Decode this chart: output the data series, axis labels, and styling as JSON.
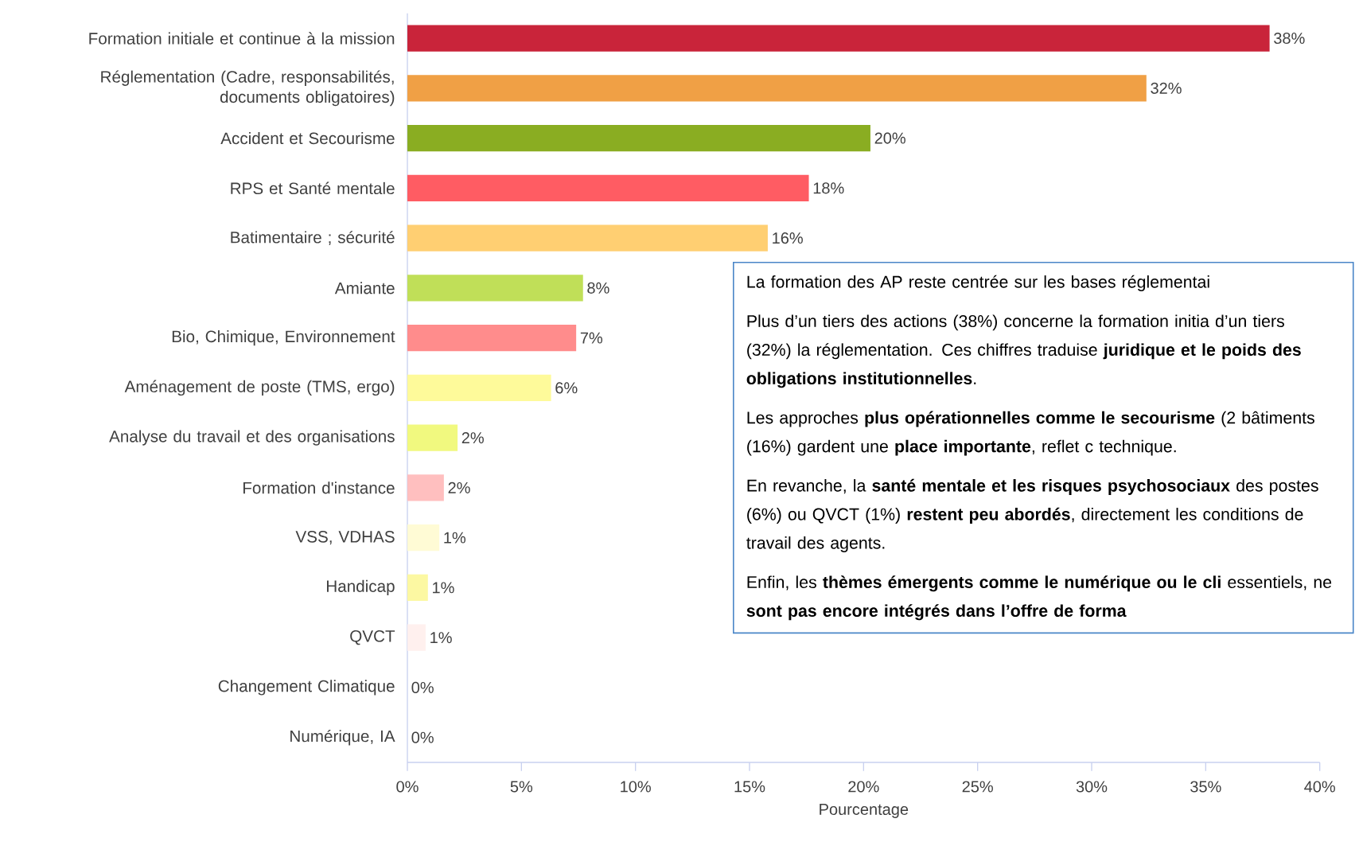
{
  "chart_data": {
    "type": "bar",
    "orientation": "horizontal",
    "categories": [
      "Formation initiale et continue à la mission",
      "Réglementation (Cadre, responsabilités, documents obligatoires)",
      "Accident et Secourisme",
      "RPS et Santé mentale",
      "Batimentaire ; sécurité",
      "Amiante",
      "Bio, Chimique, Environnement",
      "Aménagement de poste (TMS, ergo)",
      "Analyse du travail et des organisations",
      "Formation d'instance",
      "VSS, VDHAS",
      "Handicap",
      "QVCT",
      "Changement Climatique",
      "Numérique, IA"
    ],
    "values": [
      37.8,
      32.4,
      20.3,
      17.6,
      15.8,
      7.7,
      7.4,
      6.3,
      2.2,
      1.6,
      1.4,
      0.9,
      0.8,
      0,
      0
    ],
    "colors": [
      "#c9243a",
      "#f0a045",
      "#8aad22",
      "#ff5c63",
      "#ffcf72",
      "#c0df58",
      "#ff8c8c",
      "#fefa9a",
      "#f1f97f",
      "#ffbfbf",
      "#fffbd5",
      "#fcf8a2",
      "#fff0ee",
      "#f5f5f5",
      "#f5f5f5"
    ],
    "value_labels": [
      "38%",
      "32%",
      "20%",
      "18%",
      "16%",
      "8%",
      "7%",
      "6%",
      "2%",
      "2%",
      "1%",
      "1%",
      "1%",
      "0%",
      "0%"
    ],
    "xlim": [
      0,
      40
    ],
    "xticks": [
      {
        "value": 0,
        "label": "0%"
      },
      {
        "value": 5,
        "label": "5%"
      },
      {
        "value": 10,
        "label": "10%"
      },
      {
        "value": 15,
        "label": "15%"
      },
      {
        "value": 20,
        "label": "20%"
      },
      {
        "value": 25,
        "label": "25%"
      },
      {
        "value": 30,
        "label": "30%"
      },
      {
        "value": 35,
        "label": "35%"
      },
      {
        "value": 40,
        "label": "40%"
      }
    ],
    "xlabel": "Pourcentage",
    "annotations": [
      "La formation des AP reste centrée sur les bases réglementai",
      "Plus d’un tiers des actions (38%) concerne la formation initia d’un tiers (32%) la réglementation. Ces chiffres traduise **juridique et le poids des obligations institutionnelles**.",
      "Les approches **plus opérationnelles comme le secourisme** (2 bâtiments (16%) gardent une **place importante**, reflet c technique.",
      "En revanche, la **santé mentale et les risques psychosociaux** des postes (6%) ou QVCT (1%) **restent peu abordés**, directement les conditions de travail des agents.",
      "Enfin, les **thèmes émergents comme le numérique ou le cli** essentiels, ne **sont pas encore intégrés dans l’offre de forma**"
    ]
  }
}
